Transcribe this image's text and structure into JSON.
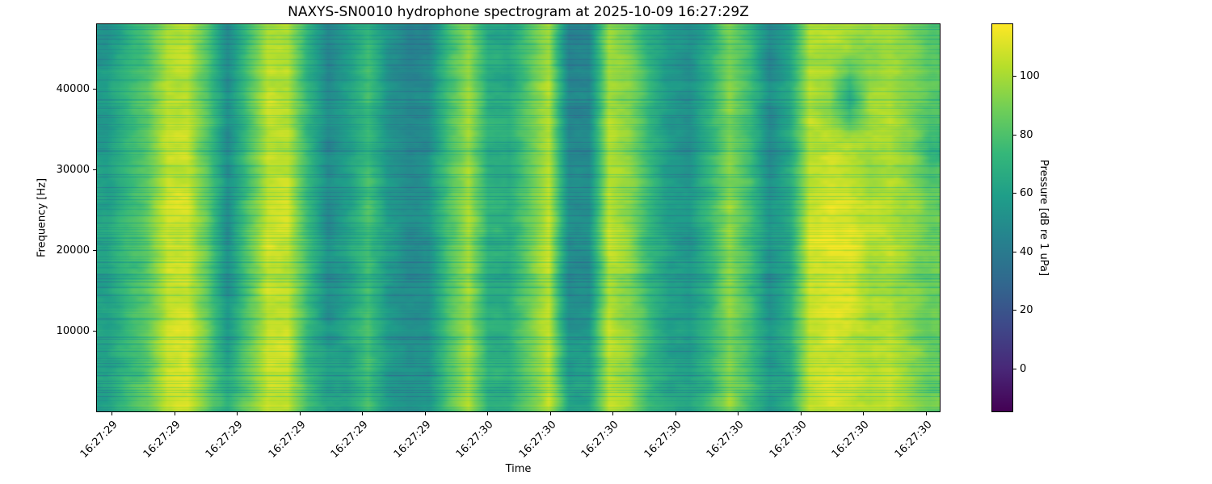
{
  "chart_data": {
    "type": "heatmap",
    "title": "NAXYS-SN0010 hydrophone spectrogram at 2025-10-09 16:27:29Z",
    "xlabel": "Time",
    "ylabel": "Frequency [Hz]",
    "x_tick_labels": [
      "16:27:29",
      "16:27:29",
      "16:27:29",
      "16:27:29",
      "16:27:29",
      "16:27:29",
      "16:27:30",
      "16:27:30",
      "16:27:30",
      "16:27:30",
      "16:27:30",
      "16:27:30",
      "16:27:30",
      "16:27:30"
    ],
    "y_ticks": [
      {
        "label": "40000",
        "value": 40000
      },
      {
        "label": "30000",
        "value": 30000
      },
      {
        "label": "20000",
        "value": 20000
      },
      {
        "label": "10000",
        "value": 10000
      }
    ],
    "freq_axis_range_hz": [
      0,
      48000
    ],
    "grid_on": false,
    "colormap": "viridis",
    "colormap_stops": [
      "#440154",
      "#482878",
      "#3e4989",
      "#31688e",
      "#26828e",
      "#1f9e89",
      "#35b779",
      "#6ece58",
      "#b5de2b",
      "#fde725"
    ],
    "colorbar": {
      "label": "Pressure [dB re 1 uPa]",
      "tick_labels": [
        "100",
        "80",
        "60",
        "40",
        "20",
        "0"
      ],
      "tick_values": [
        100,
        80,
        60,
        40,
        20,
        0
      ],
      "value_range_db": [
        -15,
        118
      ]
    },
    "grid_freq_rows_center_hz": [
      45000,
      39000,
      33000,
      27000,
      21000,
      15000,
      9000,
      3000
    ],
    "grid_db": [
      [
        56,
        70,
        80,
        102,
        104,
        81,
        48,
        76,
        103,
        102,
        71,
        46,
        58,
        74,
        54,
        47,
        48,
        76,
        96,
        66,
        64,
        82,
        101,
        45,
        46,
        100,
        92,
        70,
        56,
        51,
        68,
        91,
        74,
        48,
        62,
        102,
        104,
        103,
        96,
        100,
        92,
        82
      ],
      [
        58,
        72,
        82,
        104,
        106,
        83,
        50,
        78,
        105,
        104,
        73,
        48,
        60,
        76,
        56,
        49,
        50,
        78,
        98,
        68,
        66,
        84,
        103,
        47,
        48,
        102,
        94,
        72,
        58,
        53,
        70,
        93,
        76,
        50,
        64,
        104,
        95,
        60,
        98,
        102,
        90,
        84
      ],
      [
        59,
        73,
        83,
        105,
        107,
        84,
        51,
        79,
        106,
        105,
        74,
        49,
        61,
        77,
        57,
        50,
        51,
        79,
        99,
        69,
        67,
        85,
        104,
        48,
        49,
        103,
        95,
        73,
        59,
        54,
        71,
        94,
        77,
        51,
        65,
        105,
        107,
        106,
        99,
        103,
        95,
        72
      ],
      [
        61,
        75,
        85,
        107,
        109,
        86,
        53,
        81,
        108,
        107,
        76,
        51,
        63,
        79,
        59,
        52,
        53,
        81,
        101,
        71,
        69,
        87,
        106,
        50,
        51,
        105,
        97,
        75,
        61,
        56,
        73,
        96,
        79,
        53,
        67,
        107,
        109,
        108,
        101,
        105,
        97,
        87
      ],
      [
        62,
        76,
        86,
        108,
        110,
        87,
        54,
        82,
        109,
        108,
        77,
        52,
        64,
        80,
        60,
        53,
        54,
        82,
        102,
        72,
        70,
        88,
        107,
        51,
        52,
        106,
        98,
        76,
        62,
        57,
        74,
        97,
        80,
        54,
        68,
        113,
        115,
        114,
        107,
        106,
        98,
        88
      ],
      [
        60,
        74,
        84,
        106,
        108,
        85,
        52,
        80,
        107,
        106,
        75,
        50,
        62,
        78,
        58,
        51,
        52,
        80,
        100,
        70,
        68,
        86,
        105,
        49,
        50,
        104,
        96,
        74,
        60,
        55,
        72,
        95,
        78,
        52,
        66,
        110,
        112,
        111,
        100,
        104,
        96,
        86
      ],
      [
        61,
        75,
        85,
        107,
        109,
        86,
        58,
        81,
        108,
        107,
        76,
        56,
        63,
        79,
        59,
        52,
        53,
        81,
        101,
        71,
        69,
        87,
        106,
        55,
        56,
        105,
        97,
        75,
        61,
        56,
        73,
        96,
        79,
        58,
        67,
        107,
        109,
        108,
        101,
        105,
        97,
        87
      ],
      [
        62,
        76,
        86,
        108,
        110,
        87,
        70,
        88,
        109,
        108,
        77,
        62,
        64,
        80,
        60,
        53,
        54,
        82,
        102,
        72,
        70,
        88,
        107,
        62,
        64,
        106,
        98,
        76,
        66,
        62,
        74,
        97,
        80,
        60,
        68,
        108,
        110,
        109,
        102,
        106,
        98,
        88
      ]
    ]
  }
}
